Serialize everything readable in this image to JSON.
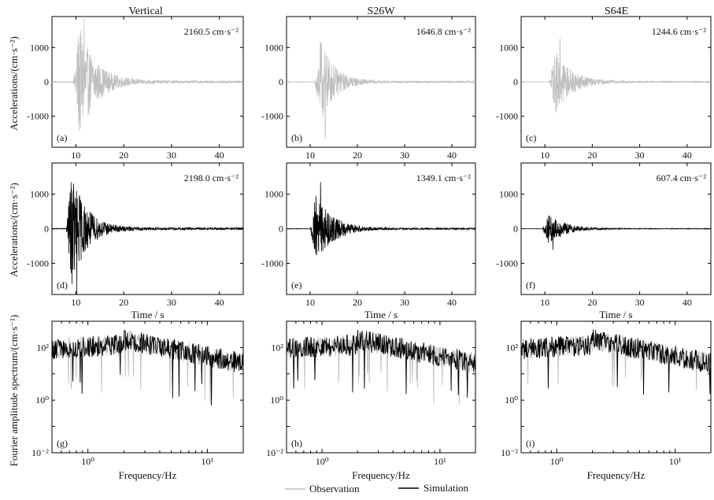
{
  "figure": {
    "column_titles": [
      "Vertical",
      "S26W",
      "S64E"
    ],
    "row_ylabels": [
      "Accelerations/(cm·s⁻²)",
      "Accelerations/(cm·s⁻²)",
      "Fourier amplitude spectrum/(cm·s⁻¹)"
    ],
    "legend": {
      "observation": "Observation",
      "simulation": "Simulation"
    }
  },
  "colors": {
    "observation": "#c0c0c0",
    "simulation": "#000000",
    "axes": "#000000"
  },
  "chart_data": [
    {
      "type": "line",
      "panel": "(a)",
      "row": 0,
      "col": 0,
      "kind": "time",
      "series": "observation",
      "peak_label": "2160.5 cm·s⁻²",
      "pga": 2160.5,
      "onset": 9.5,
      "decay": 3.5,
      "ylim": [
        -1900,
        1900
      ],
      "yticks": [
        -1000,
        0,
        1000
      ],
      "xlim": [
        5,
        45
      ],
      "xticks": [
        10,
        20,
        30,
        40
      ],
      "xlabel": ""
    },
    {
      "type": "line",
      "panel": "(b)",
      "row": 0,
      "col": 1,
      "kind": "time",
      "series": "observation",
      "peak_label": "1646.8 cm·s⁻²",
      "pga": 1646.8,
      "onset": 11.0,
      "decay": 3.0,
      "ylim": [
        -1900,
        1900
      ],
      "yticks": [
        -1000,
        0,
        1000
      ],
      "xlim": [
        5,
        45
      ],
      "xticks": [
        10,
        20,
        30,
        40
      ],
      "xlabel": ""
    },
    {
      "type": "line",
      "panel": "(c)",
      "row": 0,
      "col": 2,
      "kind": "time",
      "series": "observation",
      "peak_label": "1244.6 cm·s⁻²",
      "pga": 1244.6,
      "onset": 11.0,
      "decay": 3.5,
      "ylim": [
        -1900,
        1900
      ],
      "yticks": [
        -1000,
        0,
        1000
      ],
      "xlim": [
        5,
        45
      ],
      "xticks": [
        10,
        20,
        30,
        40
      ],
      "xlabel": ""
    },
    {
      "type": "line",
      "panel": "(d)",
      "row": 1,
      "col": 0,
      "kind": "time",
      "series": "simulation",
      "peak_label": "2198.0 cm·s⁻²",
      "pga": 2198.0,
      "onset": 8.0,
      "decay": 3.0,
      "ylim": [
        -1900,
        1900
      ],
      "yticks": [
        -1000,
        0,
        1000
      ],
      "xlim": [
        5,
        45
      ],
      "xticks": [
        10,
        20,
        30,
        40
      ],
      "xlabel": "Time / s"
    },
    {
      "type": "line",
      "panel": "(e)",
      "row": 1,
      "col": 1,
      "kind": "time",
      "series": "simulation",
      "peak_label": "1349.1 cm·s⁻²",
      "pga": 1349.1,
      "onset": 10.0,
      "decay": 3.5,
      "ylim": [
        -1900,
        1900
      ],
      "yticks": [
        -1000,
        0,
        1000
      ],
      "xlim": [
        5,
        45
      ],
      "xticks": [
        10,
        20,
        30,
        40
      ],
      "xlabel": "Time / s"
    },
    {
      "type": "line",
      "panel": "(f)",
      "row": 1,
      "col": 2,
      "kind": "time",
      "series": "simulation",
      "peak_label": "607.4 cm·s⁻²",
      "pga": 607.4,
      "onset": 9.5,
      "decay": 3.5,
      "ylim": [
        -1900,
        1900
      ],
      "yticks": [
        -1000,
        0,
        1000
      ],
      "xlim": [
        5,
        45
      ],
      "xticks": [
        10,
        20,
        30,
        40
      ],
      "xlabel": "Time / s"
    },
    {
      "type": "line",
      "panel": "(g)",
      "row": 2,
      "col": 0,
      "kind": "spectrum",
      "xscale": "log",
      "yscale": "log",
      "xlim": [
        0.5,
        20
      ],
      "ylim": [
        0.01,
        1000
      ],
      "yticks": [
        "10⁻²",
        "10⁰",
        "10²"
      ],
      "xticks": [
        "10⁰",
        "10¹"
      ],
      "xlabel": "Frequency/Hz",
      "series": [
        "observation",
        "simulation"
      ]
    },
    {
      "type": "line",
      "panel": "(h)",
      "row": 2,
      "col": 1,
      "kind": "spectrum",
      "xscale": "log",
      "yscale": "log",
      "xlim": [
        0.5,
        20
      ],
      "ylim": [
        0.01,
        1000
      ],
      "yticks": [
        "10⁻²",
        "10⁰",
        "10²"
      ],
      "xticks": [
        "10⁰",
        "10¹"
      ],
      "xlabel": "Frequency/Hz",
      "series": [
        "observation",
        "simulation"
      ]
    },
    {
      "type": "line",
      "panel": "(i)",
      "row": 2,
      "col": 2,
      "kind": "spectrum",
      "xscale": "log",
      "yscale": "log",
      "xlim": [
        0.5,
        20
      ],
      "ylim": [
        0.01,
        1000
      ],
      "yticks": [
        "10⁻²",
        "10⁰",
        "10²"
      ],
      "xticks": [
        "10⁰",
        "10¹"
      ],
      "xlabel": "Frequency/Hz",
      "series": [
        "observation",
        "simulation"
      ]
    }
  ]
}
